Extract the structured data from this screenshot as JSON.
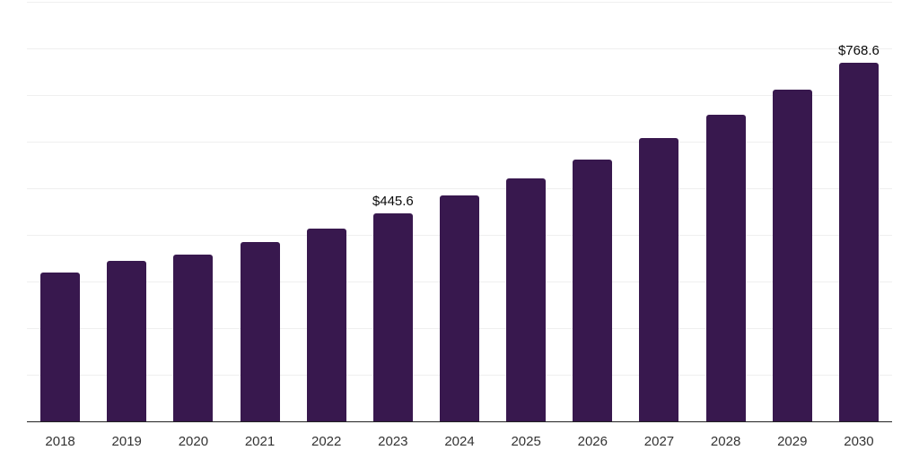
{
  "chart_data": {
    "type": "bar",
    "title": "",
    "xlabel": "",
    "ylabel": "",
    "categories": [
      "2018",
      "2019",
      "2020",
      "2021",
      "2022",
      "2023",
      "2024",
      "2025",
      "2026",
      "2027",
      "2028",
      "2029",
      "2030"
    ],
    "values": [
      320,
      345,
      358,
      385,
      414,
      445.6,
      484,
      521,
      561,
      607,
      657,
      711,
      768.6
    ],
    "data_labels": {
      "2023": "$445.6",
      "2030": "$768.6"
    },
    "value_prefix": "$",
    "ylim": [
      0,
      900
    ],
    "grid_step": 100,
    "grid": "horizontal only, no y tick labels",
    "legend": "none",
    "colors": {
      "bar": "#38184E",
      "gridline": "#EFEFEF",
      "axis_line": "#222222",
      "tick_label": "#333333",
      "data_label": "#0B0B0B"
    }
  }
}
